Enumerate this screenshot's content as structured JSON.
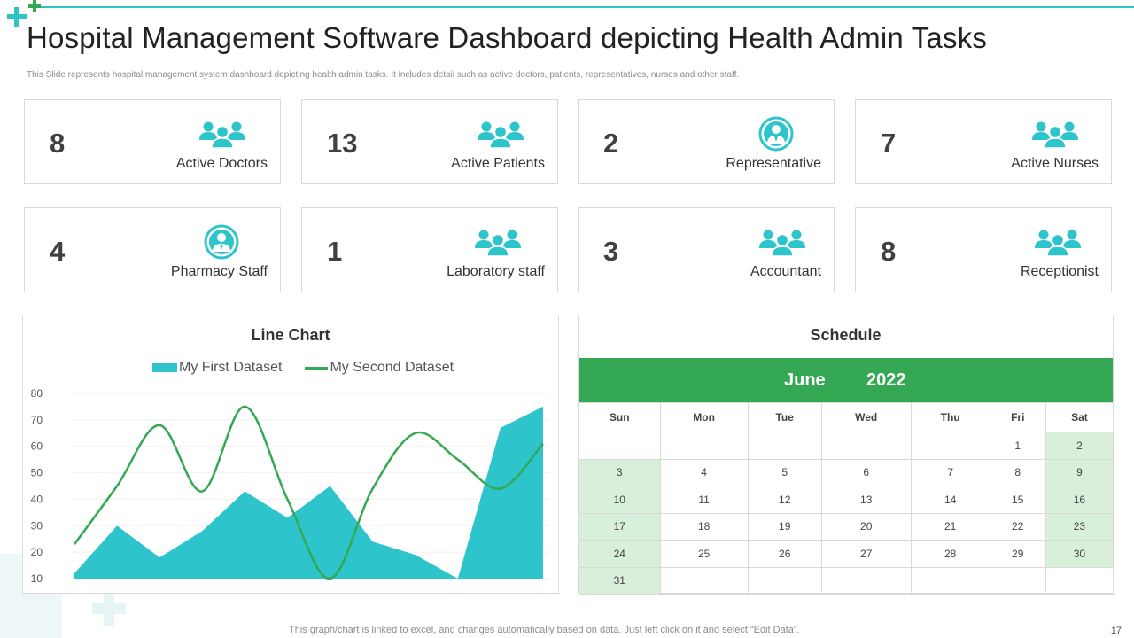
{
  "header": {
    "title": "Hospital Management Software Dashboard depicting Health Admin Tasks",
    "subtitle": "This Slide represents hospital management system dashboard depicting health admin tasks. It includes detail such as active doctors, patients, representatives, nurses and other staff."
  },
  "cards": [
    {
      "value": "8",
      "label": "Active Doctors",
      "icon": "group-icon"
    },
    {
      "value": "13",
      "label": "Active Patients",
      "icon": "group-icon"
    },
    {
      "value": "2",
      "label": "Representative",
      "icon": "person-circle-icon"
    },
    {
      "value": "7",
      "label": "Active Nurses",
      "icon": "group-icon"
    },
    {
      "value": "4",
      "label": "Pharmacy Staff",
      "icon": "person-circle-icon"
    },
    {
      "value": "1",
      "label": "Laboratory staff",
      "icon": "group-icon"
    },
    {
      "value": "3",
      "label": "Accountant",
      "icon": "group-icon"
    },
    {
      "value": "8",
      "label": "Receptionist",
      "icon": "group-icon"
    }
  ],
  "colors": {
    "accent": "#2ec4cc",
    "green": "#34a853",
    "weekend": "#d8efd9"
  },
  "chart_data": {
    "type": "area",
    "title": "Line Chart",
    "legend_position": "top",
    "yticks": [
      10,
      20,
      30,
      40,
      50,
      60,
      70,
      80
    ],
    "ylim": [
      10,
      80
    ],
    "x": [
      0,
      1,
      2,
      3,
      4,
      5,
      6,
      7,
      8,
      9,
      10,
      11
    ],
    "series": [
      {
        "name": "My First Dataset",
        "kind": "area",
        "values": [
          12,
          30,
          18,
          28,
          43,
          33,
          45,
          24,
          19,
          10,
          67,
          75
        ]
      },
      {
        "name": "My Second Dataset",
        "kind": "line",
        "values": [
          23,
          45,
          68,
          43,
          75,
          40,
          10,
          44,
          65,
          55,
          44,
          61
        ]
      }
    ]
  },
  "schedule": {
    "title": "Schedule",
    "month": "June",
    "year": "2022",
    "weekdays": [
      "Sun",
      "Mon",
      "Tue",
      "Wed",
      "Thu",
      "Fri",
      "Sat"
    ],
    "weeks": [
      [
        "",
        "",
        "",
        "",
        "",
        "1",
        "2"
      ],
      [
        "3",
        "4",
        "5",
        "6",
        "7",
        "8",
        "9"
      ],
      [
        "10",
        "11",
        "12",
        "13",
        "14",
        "15",
        "16"
      ],
      [
        "17",
        "18",
        "19",
        "20",
        "21",
        "22",
        "23"
      ],
      [
        "24",
        "25",
        "26",
        "27",
        "28",
        "29",
        "30"
      ],
      [
        "31",
        "",
        "",
        "",
        "",
        "",
        ""
      ]
    ]
  },
  "footer": {
    "note": "This graph/chart is linked to excel,  and changes automatically based on data. Just left click on it and select “Edit Data”.",
    "page_number": "17"
  }
}
